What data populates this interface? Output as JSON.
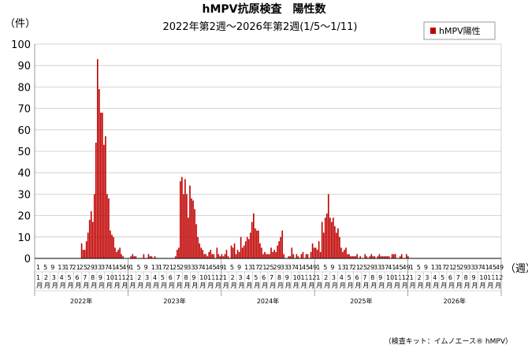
{
  "chart_data": {
    "type": "bar",
    "title": "hMPV抗原検査　陽性数",
    "subtitle": "2022年第2週～2026年第2週(1/5～1/11)",
    "y_unit_label": "（件）",
    "x_unit_label": "（週）",
    "ylim": [
      0,
      100
    ],
    "y_ticks": [
      0,
      10,
      20,
      30,
      40,
      50,
      60,
      70,
      80,
      90,
      100
    ],
    "grid": true,
    "legend_position": "top-right",
    "series": [
      {
        "name": "hMPV陽性",
        "color": "#c00000",
        "values": [
          0,
          0,
          0,
          0,
          0,
          0,
          0,
          0,
          0,
          0,
          0,
          0,
          0,
          0,
          0,
          0,
          0,
          0,
          0,
          0,
          0,
          0,
          0,
          0,
          0,
          0,
          0,
          0,
          0,
          7,
          4,
          4,
          8,
          12,
          18,
          22,
          17,
          30,
          54,
          93,
          79,
          68,
          68,
          53,
          57,
          30,
          28,
          13,
          11,
          10,
          5,
          3,
          4,
          5,
          2,
          1,
          0,
          0,
          0,
          0,
          1,
          2,
          1,
          1,
          0,
          0,
          0,
          0,
          2,
          0,
          0,
          2,
          1,
          1,
          0,
          1,
          0,
          0,
          0,
          0,
          0,
          0,
          0,
          0,
          0,
          0,
          0,
          0,
          1,
          4,
          5,
          36,
          38,
          30,
          37,
          30,
          19,
          34,
          28,
          27,
          23,
          16,
          10,
          7,
          5,
          4,
          2,
          2,
          1,
          3,
          4,
          2,
          2,
          0,
          5,
          2,
          1,
          2,
          1,
          2,
          4,
          1,
          0,
          6,
          5,
          7,
          2,
          4,
          3,
          10,
          5,
          6,
          8,
          10,
          9,
          12,
          17,
          21,
          14,
          13,
          13,
          7,
          5,
          2,
          3,
          2,
          2,
          2,
          5,
          3,
          4,
          3,
          6,
          8,
          10,
          13,
          2,
          0,
          0,
          1,
          1,
          5,
          2,
          0,
          2,
          1,
          0,
          2,
          3,
          0,
          2,
          2,
          0,
          3,
          7,
          5,
          5,
          4,
          8,
          3,
          17,
          12,
          19,
          21,
          30,
          19,
          17,
          19,
          15,
          12,
          14,
          10,
          5,
          3,
          4,
          5,
          2,
          2,
          1,
          1,
          1,
          1,
          2,
          0,
          1,
          0,
          0,
          2,
          1,
          0,
          1,
          2,
          1,
          1,
          0,
          1,
          2,
          1,
          1,
          1,
          1,
          1,
          1,
          0,
          2,
          2,
          2,
          0,
          0,
          1,
          2,
          0,
          0,
          2,
          1,
          0,
          0,
          0,
          0,
          0,
          0,
          0,
          0,
          0,
          0,
          0,
          0,
          0,
          0,
          0,
          0,
          0,
          0,
          0,
          0,
          0,
          0,
          0,
          0,
          0,
          0,
          0,
          0,
          0,
          0,
          0,
          0,
          0,
          0,
          0,
          0,
          0,
          0,
          0,
          0,
          0,
          0,
          0,
          0,
          0,
          0,
          0,
          0,
          0,
          0,
          0,
          0,
          0,
          0,
          0,
          0,
          0,
          0
        ]
      }
    ],
    "week_tick_labels": [
      "1",
      "5",
      "9",
      "13",
      "17",
      "21",
      "25",
      "29",
      "33",
      "37",
      "41",
      "45",
      "49"
    ],
    "month_tick_labels": [
      "1\n月",
      "2\n月",
      "3\n月",
      "4\n月",
      "5\n月",
      "6\n月",
      "7\n月",
      "8\n月",
      "9\n月",
      "10\n月",
      "11\n月",
      "12\n月"
    ],
    "years": [
      "2022年",
      "2023年",
      "2024年",
      "2025年",
      "2026年"
    ],
    "footnote": "（検査キット：イムノエース® hMPV）"
  }
}
